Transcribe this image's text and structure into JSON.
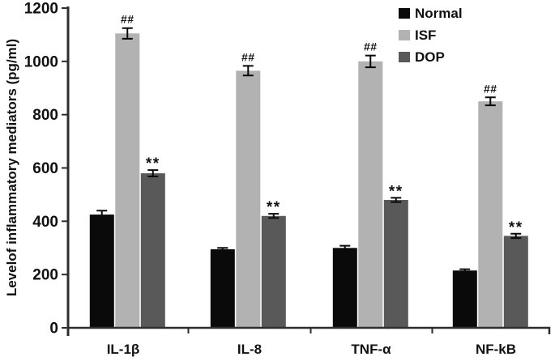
{
  "chart_data": {
    "type": "bar",
    "title": "",
    "xlabel": "",
    "ylabel": "Levelof inflammatory mediators (pg/ml)",
    "ylim": [
      0,
      1200
    ],
    "yticks": [
      0,
      200,
      400,
      600,
      800,
      1000,
      1200
    ],
    "grid": false,
    "legend_position": "top-right",
    "error_bars": true,
    "categories": [
      "IL-1β",
      "IL-8",
      "TNF-α",
      "NF-kB"
    ],
    "series": [
      {
        "name": "Normal",
        "color": "#0a0a0a",
        "values": [
          425,
          295,
          300,
          215
        ],
        "errors": [
          15,
          5,
          8,
          5
        ],
        "annotation": ""
      },
      {
        "name": "ISF",
        "color": "#b2b2b2",
        "values": [
          1105,
          965,
          1000,
          850
        ],
        "errors": [
          20,
          18,
          22,
          15
        ],
        "annotation": "##"
      },
      {
        "name": "DOP",
        "color": "#595959",
        "values": [
          580,
          420,
          480,
          345
        ],
        "errors": [
          12,
          8,
          8,
          8
        ],
        "annotation": "**"
      }
    ],
    "axis_color": "#2e2e2e",
    "text_color": "#111111"
  }
}
